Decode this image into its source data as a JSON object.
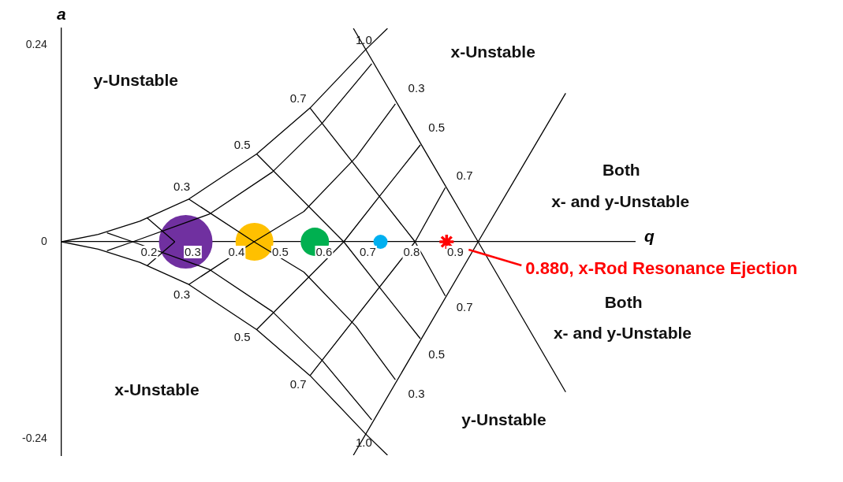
{
  "chart_data": {
    "type": "line",
    "xlabel": "q",
    "ylabel": "a",
    "xlim": [
      0,
      1.31
    ],
    "ylim": [
      -0.26,
      0.26
    ],
    "xticks": [
      0.2,
      0.3,
      0.4,
      0.5,
      0.6,
      0.7,
      0.8,
      0.9
    ],
    "yticks": [
      -0.24,
      0,
      0.24
    ],
    "grid": false,
    "legend": false,
    "series": [
      {
        "color": "#000000",
        "x": [
          0.745,
          0.693,
          0.568,
          0.446,
          0.291,
          0.179,
          0.084,
          0,
          0.084,
          0.179,
          0.291,
          0.446,
          0.568,
          0.693,
          0.745
        ],
        "values": [
          -0.26,
          -0.233,
          -0.163,
          -0.107,
          -0.052,
          -0.025,
          -0.009,
          0,
          0.009,
          0.025,
          0.052,
          0.107,
          0.163,
          0.233,
          0.26
        ]
      },
      {
        "color": "#000000",
        "x": [
          0.667,
          0.952,
          1.152
        ],
        "values": [
          0.26,
          0,
          -0.183
        ]
      },
      {
        "color": "#000000",
        "x": [
          1.152,
          0.952,
          0.667
        ],
        "values": [
          0.181,
          0,
          -0.26
        ]
      },
      {
        "color": "#000000",
        "x": [
          0.104,
          0.163,
          0.339,
          0.482,
          0.595,
          0.709
        ],
        "values": [
          0.011,
          0,
          -0.034,
          -0.085,
          -0.144,
          -0.217
        ]
      },
      {
        "color": "#000000",
        "x": [
          0.104,
          0.163,
          0.339,
          0.482,
          0.595,
          0.709
        ],
        "values": [
          -0.011,
          0,
          0.034,
          0.085,
          0.144,
          0.217
        ]
      },
      {
        "color": "#000000",
        "x": [
          0.196,
          0.259
        ],
        "values": [
          0.029,
          0
        ]
      },
      {
        "color": "#000000",
        "x": [
          0.196,
          0.259
        ],
        "values": [
          -0.029,
          0
        ]
      },
      {
        "color": "#000000",
        "x": [
          0.291,
          0.44,
          0.554,
          0.673,
          0.763
        ],
        "values": [
          0.052,
          0,
          -0.037,
          -0.103,
          -0.168
        ]
      },
      {
        "color": "#000000",
        "x": [
          0.291,
          0.44,
          0.554,
          0.673,
          0.763
        ],
        "values": [
          -0.052,
          0,
          0.037,
          0.103,
          0.168
        ]
      },
      {
        "color": "#000000",
        "x": [
          0.446,
          0.645,
          0.729,
          0.82
        ],
        "values": [
          0.107,
          0,
          -0.057,
          -0.118
        ]
      },
      {
        "color": "#000000",
        "x": [
          0.446,
          0.645,
          0.729,
          0.82
        ],
        "values": [
          -0.107,
          0,
          0.057,
          0.118
        ]
      },
      {
        "color": "#000000",
        "x": [
          0.568,
          0.808,
          0.877
        ],
        "values": [
          0.163,
          0,
          -0.066
        ]
      },
      {
        "color": "#000000",
        "x": [
          0.568,
          0.808,
          0.877
        ],
        "values": [
          -0.163,
          0,
          0.066
        ]
      },
      {
        "type": "bubble",
        "x": [
          0.284,
          0.441,
          0.579,
          0.729
        ],
        "values": [
          0,
          0,
          0,
          0
        ],
        "sizes": [
          1,
          0.5,
          0.28,
          0.07
        ],
        "colors": [
          "#7030a0",
          "#ffc000",
          "#00b050",
          "#00b0f0"
        ]
      },
      {
        "type": "scatter",
        "marker": "cross",
        "color": "#ff0000",
        "x": [
          0.88
        ],
        "values": [
          0
        ]
      }
    ],
    "annotations": [
      "0.880, x-Rod Resonance Ejection",
      "y-Unstable",
      "x-Unstable",
      "Both",
      "x- and y-Unstable",
      "Both",
      "x- and y-Unstable",
      "x-Unstable",
      "y-Unstable",
      "0.3",
      "0.5",
      "0.7",
      "1.0",
      "0.3",
      "0.5",
      "0.7",
      "0.3",
      "0.5",
      "0.7",
      "1.0",
      "0.3",
      "0.5",
      "0.7"
    ]
  }
}
